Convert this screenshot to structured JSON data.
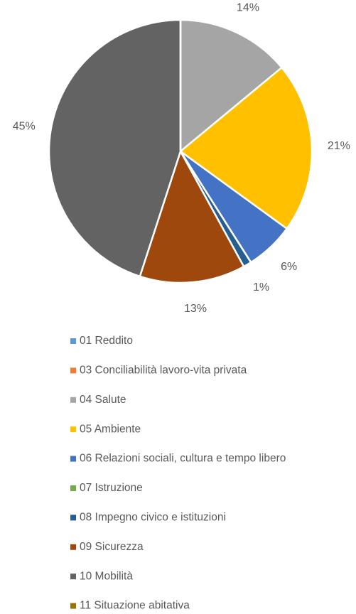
{
  "chart_data": {
    "type": "pie",
    "categories": [
      "01 Reddito",
      "03 Conciliabilità lavoro-vita privata",
      "04 Salute",
      "05 Ambiente",
      "06 Relazioni sociali, cultura e tempo libero",
      "07 Istruzione",
      "08 Impegno civico e istituzioni",
      "09 Sicurezza",
      "10 Mobilità",
      "11 Situazione abitativa"
    ],
    "values": [
      0,
      0,
      14,
      21,
      6,
      0,
      1,
      13,
      45,
      0
    ],
    "value_labels": [
      null,
      null,
      "14%",
      "21%",
      "6%",
      null,
      "1%",
      "13%",
      "45%",
      null
    ],
    "colors": [
      "#5b9bd5",
      "#ed7d31",
      "#a5a5a5",
      "#ffc000",
      "#4472c4",
      "#70ad47",
      "#255e91",
      "#9e480e",
      "#636363",
      "#997300"
    ],
    "legend": "bottom"
  }
}
